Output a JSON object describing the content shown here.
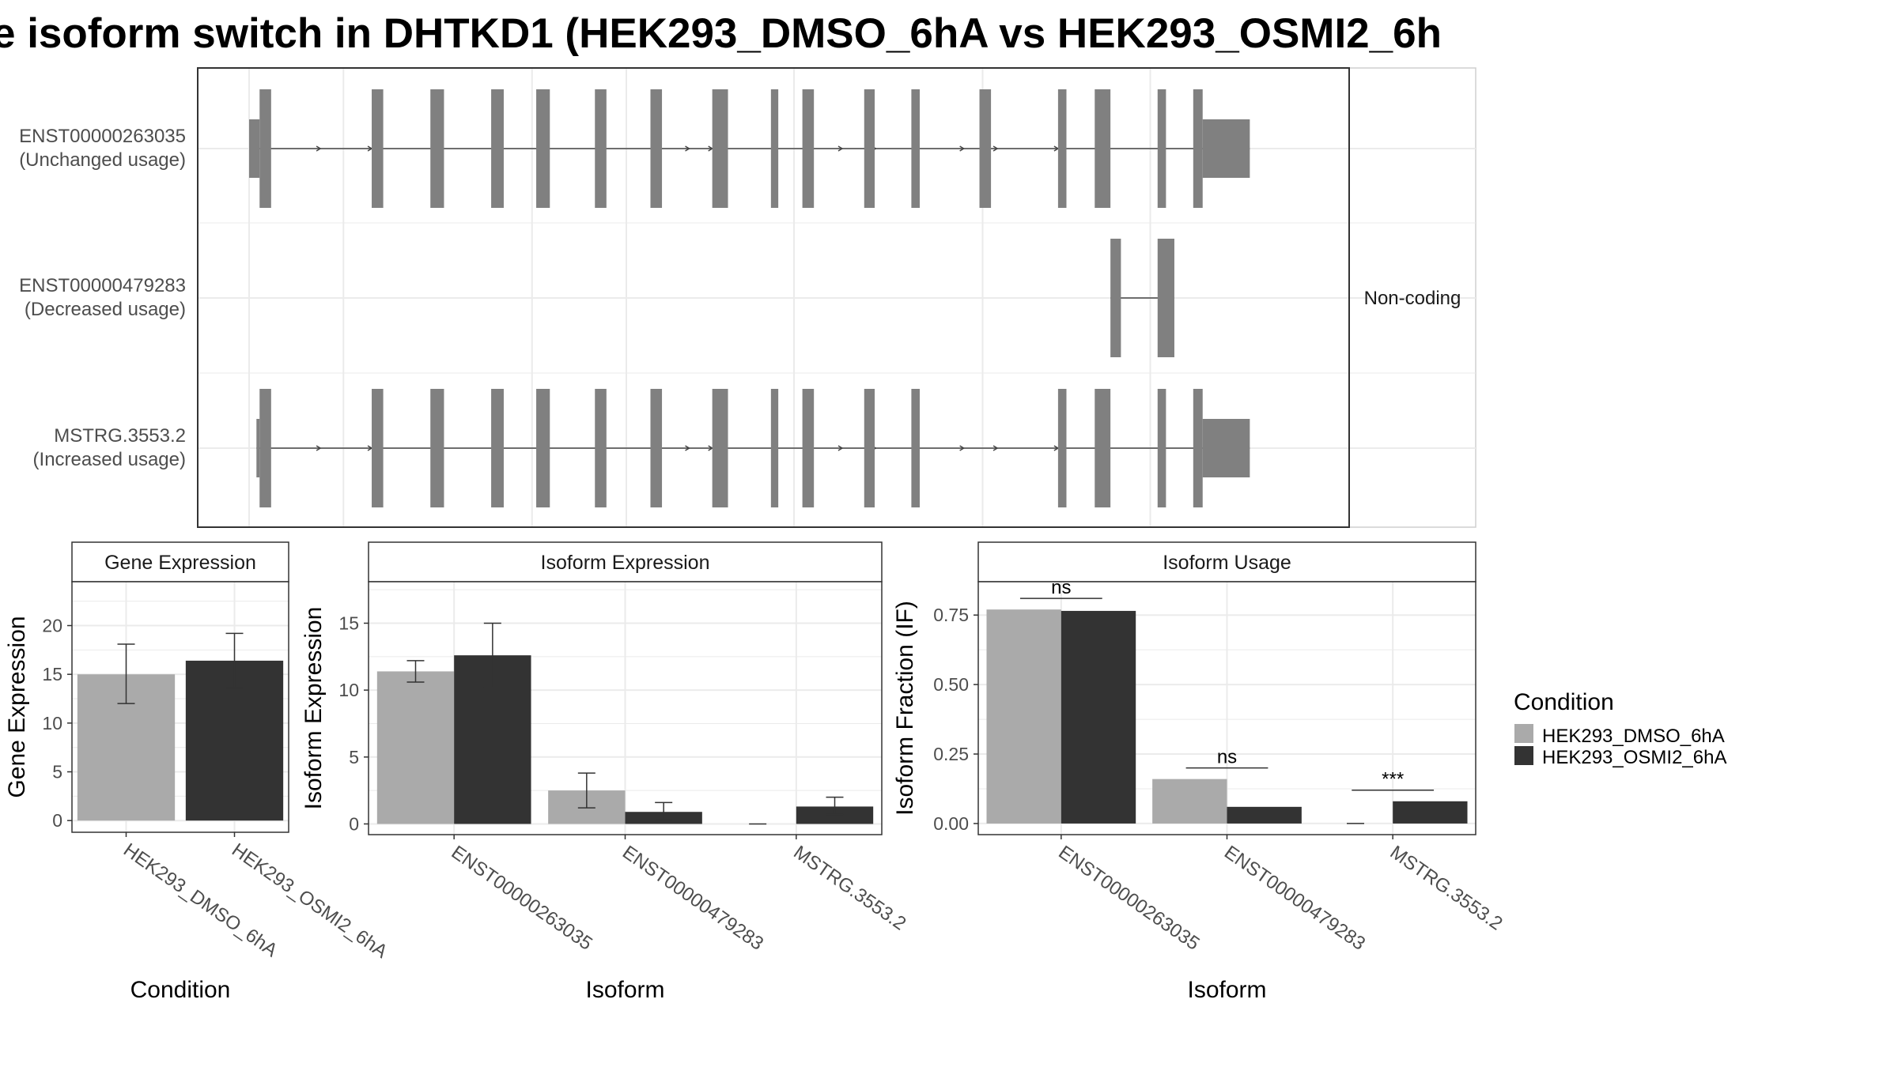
{
  "title": "e isoform switch in DHTKD1 (HEK293_DMSO_6hA vs HEK293_OSMI2_6h",
  "colors": {
    "dmso": "#aaaaaa",
    "osmi2": "#333333",
    "exon": "#808080",
    "grid": "#ebebeb",
    "panel_border": "#333333",
    "strip_bg": "#ffffff"
  },
  "chart_data": [
    {
      "type": "isoform_structure",
      "facet_label": "Non-coding",
      "x_range": [
        0,
        1000
      ],
      "isoforms": [
        {
          "id": "ENST00000263035",
          "usage": "(Unchanged usage)",
          "coding": true,
          "tss": [
            0,
            10
          ],
          "exons": [
            [
              10,
              21
            ],
            [
              117,
              128
            ],
            [
              173,
              186
            ],
            [
              231,
              243
            ],
            [
              274,
              287
            ],
            [
              330,
              341
            ],
            [
              383,
              394
            ],
            [
              442,
              457
            ],
            [
              498,
              505
            ],
            [
              528,
              539
            ],
            [
              587,
              597
            ],
            [
              632,
              640
            ],
            [
              697,
              708
            ],
            [
              772,
              780
            ],
            [
              807,
              822
            ],
            [
              867,
              875
            ],
            [
              901,
              910
            ]
          ],
          "utr3": [
            910,
            955
          ],
          "arrows": [
            68,
            117,
            420,
            442,
            566,
            598,
            682,
            714,
            772
          ]
        },
        {
          "id": "ENST00000479283",
          "usage": "(Decreased usage)",
          "coding": false,
          "tss": null,
          "exons": [
            [
              822,
              832
            ],
            [
              867,
              883
            ]
          ],
          "utr3": null,
          "arrows": []
        },
        {
          "id": "MSTRG.3553.2",
          "usage": "(Increased usage)",
          "coding": true,
          "tss": [
            7,
            10
          ],
          "exons": [
            [
              10,
              21
            ],
            [
              117,
              128
            ],
            [
              173,
              186
            ],
            [
              231,
              243
            ],
            [
              274,
              287
            ],
            [
              330,
              341
            ],
            [
              383,
              394
            ],
            [
              442,
              457
            ],
            [
              498,
              505
            ],
            [
              528,
              539
            ],
            [
              587,
              597
            ],
            [
              632,
              640
            ],
            [
              772,
              780
            ],
            [
              807,
              822
            ],
            [
              867,
              875
            ],
            [
              901,
              910
            ]
          ],
          "utr3": [
            910,
            955
          ],
          "arrows": [
            68,
            117,
            420,
            442,
            566,
            598,
            682,
            714,
            772
          ]
        }
      ]
    },
    {
      "type": "bar",
      "strip": "Gene Expression",
      "ylabel": "Gene Expression",
      "xlabel": "Condition",
      "ylim": [
        -1.2,
        24.5
      ],
      "yticks": [
        0,
        5,
        10,
        15,
        20
      ],
      "categories": [
        "HEK293_DMSO_6hA",
        "HEK293_OSMI2_6hA"
      ],
      "bars": [
        {
          "value": 15.0,
          "lo": 12.0,
          "hi": 18.1,
          "color": "#aaaaaa"
        },
        {
          "value": 16.4,
          "lo": 13.6,
          "hi": 19.2,
          "color": "#333333"
        }
      ]
    },
    {
      "type": "bar",
      "strip": "Isoform Expression",
      "ylabel": "Isoform Expression",
      "xlabel": "Isoform",
      "ylim": [
        -0.8,
        18.1
      ],
      "yticks": [
        0,
        5,
        10,
        15
      ],
      "categories": [
        "ENST00000263035",
        "ENST00000479283",
        "MSTRG.3553.2"
      ],
      "series": [
        {
          "name": "HEK293_DMSO_6hA",
          "values": [
            11.4,
            2.5,
            0.0
          ],
          "lo": [
            10.6,
            1.2,
            0.0
          ],
          "hi": [
            12.2,
            3.8,
            0.0
          ]
        },
        {
          "name": "HEK293_OSMI2_6hA",
          "values": [
            12.6,
            0.9,
            1.3
          ],
          "lo": [
            10.2,
            0.3,
            0.7
          ],
          "hi": [
            15.0,
            1.6,
            2.0
          ]
        }
      ]
    },
    {
      "type": "bar",
      "strip": "Isoform Usage",
      "ylabel": "Isoform Fraction (IF)",
      "xlabel": "Isoform",
      "ylim": [
        -0.04,
        0.87
      ],
      "yticks": [
        0,
        0.25,
        0.5,
        0.75
      ],
      "ytick_labels": [
        "0.00",
        "0.25",
        "0.50",
        "0.75"
      ],
      "categories": [
        "ENST00000263035",
        "ENST00000479283",
        "MSTRG.3553.2"
      ],
      "series": [
        {
          "name": "HEK293_DMSO_6hA",
          "values": [
            0.77,
            0.16,
            0.0
          ]
        },
        {
          "name": "HEK293_OSMI2_6hA",
          "values": [
            0.765,
            0.06,
            0.08
          ]
        }
      ],
      "significance": [
        {
          "label": "ns",
          "y": 0.81
        },
        {
          "label": "ns",
          "y": 0.2
        },
        {
          "label": "***",
          "y": 0.12
        }
      ]
    }
  ],
  "legend": {
    "title": "Condition",
    "items": [
      {
        "label": "HEK293_DMSO_6hA",
        "color": "#aaaaaa"
      },
      {
        "label": "HEK293_OSMI2_6hA",
        "color": "#333333"
      }
    ]
  }
}
